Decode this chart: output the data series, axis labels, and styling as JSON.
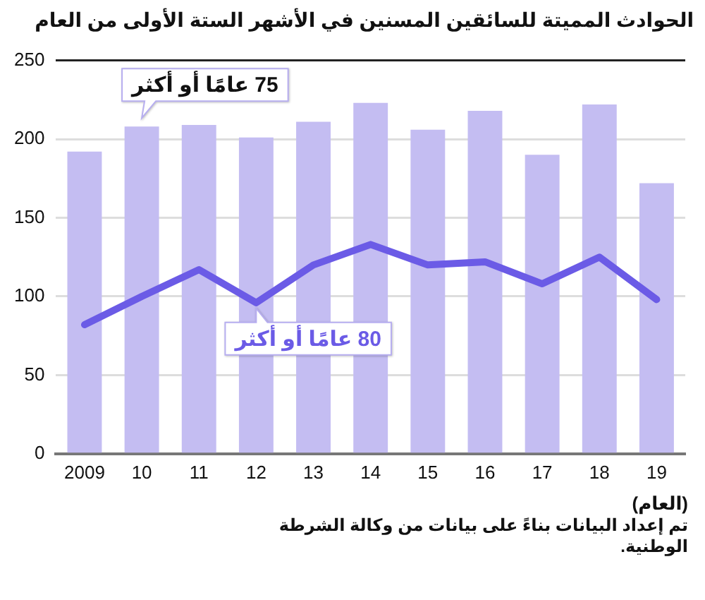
{
  "chart_data": {
    "type": "bar",
    "title": "الحوادث المميتة للسائقين المسنين في الأشهر الستة الأولى من العام",
    "xlabel": "(العام)",
    "categories": [
      "2009",
      "10",
      "11",
      "12",
      "13",
      "14",
      "15",
      "16",
      "17",
      "18",
      "19"
    ],
    "series": [
      {
        "name": "75 عامًا أو أكثر",
        "color": "#c4bdf2",
        "values": [
          192,
          208,
          209,
          201,
          211,
          223,
          206,
          218,
          190,
          222,
          172
        ]
      },
      {
        "name": "80 عامًا أو أكثر",
        "type": "line",
        "color": "#6b5be6",
        "values": [
          82,
          100,
          117,
          96,
          120,
          133,
          120,
          122,
          108,
          125,
          98
        ]
      }
    ],
    "ylim": [
      0,
      250
    ],
    "yticks": [
      0,
      50,
      100,
      150,
      200,
      250
    ],
    "grid": "y",
    "legend": false,
    "marker": "none",
    "annotations": [
      "تم إعداد البيانات بناءً على بيانات من وكالة الشرطة الوطنية."
    ]
  }
}
